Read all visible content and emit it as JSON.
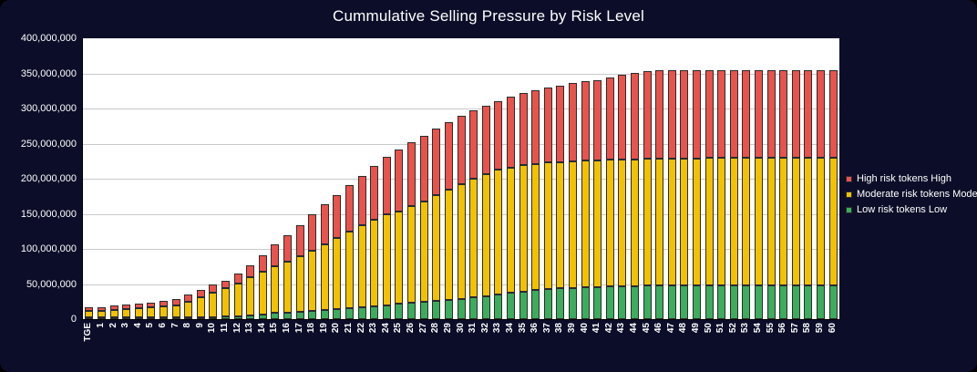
{
  "window": {
    "background_color": "#0C0E29",
    "plot_background_color": "#FFFFFF",
    "gridline_color": "#C9C9C9",
    "bar_outline_color": "#2B2B2B",
    "text_color": "#FFFFFF"
  },
  "chart_data": {
    "type": "bar",
    "stacked": true,
    "title": "Cummulative Selling Pressure by Risk Level",
    "xlabel": "",
    "ylabel": "",
    "grid": true,
    "legend_position": "right",
    "unit_multiplier": 1000000,
    "y_axis": {
      "min": 0,
      "max": 400000000,
      "tick_interval": 50000000,
      "tick_labels_bottom_up": [
        "0",
        "50,000,000",
        "100,000,000",
        "150,000,000",
        "200,000,000",
        "250,000,000",
        "300,000,000",
        "350,000,000",
        "400,000,000"
      ]
    },
    "categories": [
      "TGE",
      "1",
      "2",
      "3",
      "4",
      "5",
      "6",
      "7",
      "8",
      "9",
      "10",
      "11",
      "12",
      "13",
      "14",
      "15",
      "16",
      "17",
      "18",
      "19",
      "20",
      "21",
      "22",
      "23",
      "24",
      "25",
      "26",
      "27",
      "28",
      "29",
      "30",
      "31",
      "32",
      "33",
      "34",
      "35",
      "36",
      "37",
      "38",
      "39",
      "40",
      "41",
      "42",
      "43",
      "44",
      "45",
      "46",
      "47",
      "48",
      "49",
      "50",
      "51",
      "52",
      "53",
      "54",
      "55",
      "56",
      "57",
      "58",
      "59",
      "60"
    ],
    "series": [
      {
        "name": "Low risk tokens",
        "color": "#3BAD5C",
        "values_millions": [
          0.5,
          1,
          1.2,
          1.5,
          1.8,
          2,
          2.2,
          2.5,
          2.8,
          3,
          3.2,
          3.8,
          4.5,
          5.5,
          7,
          8.5,
          9.5,
          10.5,
          11.5,
          13,
          14,
          15.5,
          17,
          18.5,
          20,
          21.5,
          23,
          24.5,
          26,
          27.5,
          29,
          31,
          33,
          35.5,
          37.5,
          39.5,
          41,
          42.5,
          43.5,
          44.5,
          45.5,
          46,
          46.5,
          47,
          47,
          47.5,
          47.5,
          47.5,
          47.5,
          47.5,
          47.5,
          47.5,
          47.5,
          47.5,
          47.5,
          47.5,
          47.5,
          47.5,
          47.5,
          47.5,
          47.5
        ]
      },
      {
        "name": "Moderate risk tokens",
        "color": "#F2C100",
        "values_millions": [
          10,
          9.5,
          10.8,
          12,
          13.2,
          14.5,
          16.3,
          17.5,
          22.2,
          28,
          34.8,
          40.2,
          46.5,
          54.5,
          61,
          66.5,
          72.5,
          78.5,
          86.5,
          94,
          102,
          109.5,
          117,
          123.5,
          129,
          131.5,
          138,
          143.5,
          151,
          156.5,
          163,
          169,
          174,
          177.5,
          178.5,
          179.5,
          180,
          180.5,
          180.5,
          180.5,
          180.5,
          180.5,
          180.5,
          180.5,
          180.5,
          180.5,
          180.5,
          181,
          181.5,
          181.5,
          182,
          182.5,
          182.5,
          182.5,
          182.5,
          182.5,
          182.5,
          182.5,
          182.5,
          182.5,
          182.5
        ]
      },
      {
        "name": "High risk tokens",
        "color": "#E8534B",
        "values_millions": [
          6,
          7,
          7,
          7,
          7,
          7.5,
          8,
          9,
          10,
          11,
          12,
          11,
          14,
          17,
          23,
          31,
          38,
          45,
          51,
          56,
          61,
          66,
          70,
          76,
          82,
          89,
          91,
          93,
          94,
          96,
          97,
          97,
          97,
          98,
          100.5,
          103,
          105.5,
          107.5,
          109,
          111,
          112.5,
          114,
          117.5,
          121,
          123.5,
          125,
          126,
          126.5,
          126,
          126,
          125.5,
          125,
          125,
          125,
          125,
          125,
          125,
          125,
          125,
          125,
          125
        ]
      }
    ],
    "legend": [
      {
        "label": "High risk tokens  High",
        "color": "#E8534B",
        "key": "high"
      },
      {
        "label": "Moderate risk tokens Moderate",
        "color": "#F2C100",
        "key": "moderate"
      },
      {
        "label": "Low risk tokens Low",
        "color": "#3BAD5C",
        "key": "low"
      }
    ]
  }
}
